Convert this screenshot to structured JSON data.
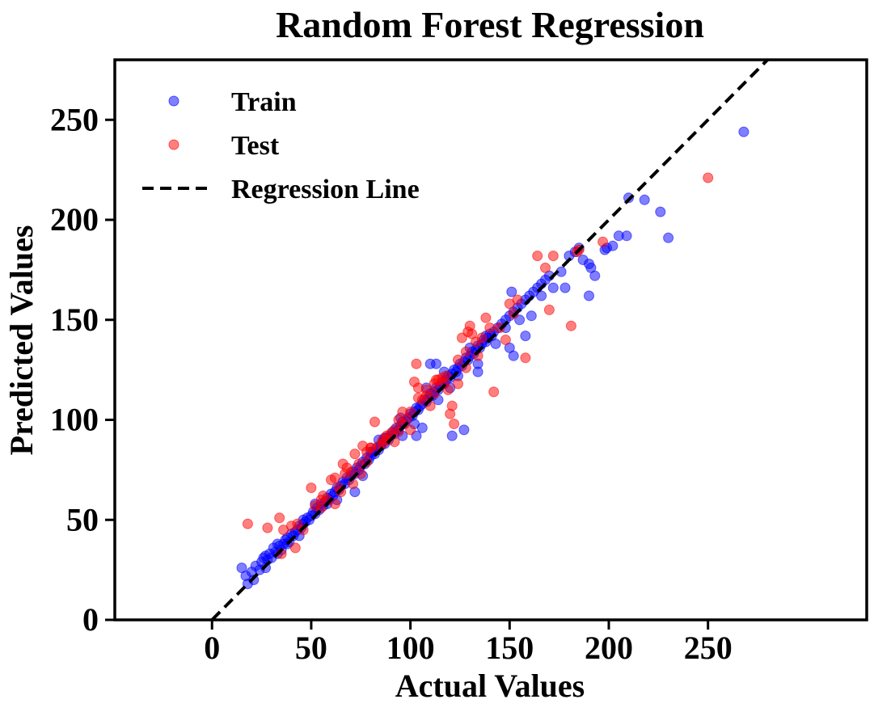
{
  "chart_data": {
    "type": "scatter",
    "title": "Random Forest Regression",
    "xlabel": "Actual Values",
    "ylabel": "Predicted Values",
    "xlim": [
      -49,
      330
    ],
    "ylim": [
      0,
      280
    ],
    "xticks": [
      0,
      50,
      100,
      150,
      200,
      250
    ],
    "yticks": [
      0,
      50,
      100,
      150,
      200,
      250
    ],
    "grid": false,
    "legend_position": "top-left",
    "series": [
      {
        "name": "Train",
        "color": "#0000ff",
        "marker": "circle",
        "points": [
          [
            15,
            26
          ],
          [
            17,
            22
          ],
          [
            18,
            18
          ],
          [
            20,
            24
          ],
          [
            21,
            20
          ],
          [
            22,
            27
          ],
          [
            24,
            25
          ],
          [
            25,
            29
          ],
          [
            26,
            31
          ],
          [
            27,
            26
          ],
          [
            28,
            30
          ],
          [
            29,
            33
          ],
          [
            30,
            31
          ],
          [
            31,
            36
          ],
          [
            32,
            34
          ],
          [
            33,
            33
          ],
          [
            34,
            37
          ],
          [
            35,
            35
          ],
          [
            36,
            38
          ],
          [
            37,
            40
          ],
          [
            38,
            41
          ],
          [
            39,
            39
          ],
          [
            40,
            43
          ],
          [
            41,
            42
          ],
          [
            42,
            44
          ],
          [
            43,
            45
          ],
          [
            44,
            47
          ],
          [
            45,
            46
          ],
          [
            46,
            48
          ],
          [
            47,
            49
          ],
          [
            48,
            51
          ],
          [
            49,
            50
          ],
          [
            50,
            52
          ],
          [
            51,
            54
          ],
          [
            52,
            53
          ],
          [
            53,
            56
          ],
          [
            54,
            55
          ],
          [
            55,
            58
          ],
          [
            56,
            57
          ],
          [
            57,
            59
          ],
          [
            58,
            61
          ],
          [
            59,
            60
          ],
          [
            60,
            63
          ],
          [
            61,
            62
          ],
          [
            62,
            64
          ],
          [
            63,
            66
          ],
          [
            64,
            65
          ],
          [
            65,
            67
          ],
          [
            66,
            69
          ],
          [
            67,
            68
          ],
          [
            68,
            71
          ],
          [
            69,
            70
          ],
          [
            70,
            72
          ],
          [
            71,
            74
          ],
          [
            72,
            73
          ],
          [
            73,
            76
          ],
          [
            74,
            75
          ],
          [
            75,
            77
          ],
          [
            76,
            79
          ],
          [
            77,
            78
          ],
          [
            78,
            81
          ],
          [
            79,
            80
          ],
          [
            80,
            82
          ],
          [
            81,
            84
          ],
          [
            82,
            83
          ],
          [
            83,
            86
          ],
          [
            84,
            85
          ],
          [
            85,
            87
          ],
          [
            86,
            89
          ],
          [
            87,
            88
          ],
          [
            88,
            91
          ],
          [
            89,
            90
          ],
          [
            90,
            92
          ],
          [
            91,
            94
          ],
          [
            92,
            93
          ],
          [
            93,
            96
          ],
          [
            94,
            95
          ],
          [
            95,
            97
          ],
          [
            96,
            99
          ],
          [
            97,
            98
          ],
          [
            98,
            100
          ],
          [
            99,
            101
          ],
          [
            100,
            103
          ],
          [
            101,
            102
          ],
          [
            102,
            104
          ],
          [
            103,
            106
          ],
          [
            104,
            105
          ],
          [
            105,
            107
          ],
          [
            106,
            108
          ],
          [
            107,
            110
          ],
          [
            108,
            109
          ],
          [
            109,
            111
          ],
          [
            110,
            113
          ],
          [
            111,
            112
          ],
          [
            112,
            114
          ],
          [
            113,
            116
          ],
          [
            114,
            115
          ],
          [
            115,
            117
          ],
          [
            116,
            119
          ],
          [
            117,
            118
          ],
          [
            118,
            120
          ],
          [
            119,
            122
          ],
          [
            120,
            121
          ],
          [
            121,
            123
          ],
          [
            122,
            125
          ],
          [
            123,
            124
          ],
          [
            124,
            126
          ],
          [
            125,
            128
          ],
          [
            126,
            127
          ],
          [
            127,
            129
          ],
          [
            128,
            131
          ],
          [
            129,
            130
          ],
          [
            130,
            132
          ],
          [
            131,
            134
          ],
          [
            132,
            133
          ],
          [
            133,
            135
          ],
          [
            134,
            137
          ],
          [
            135,
            136
          ],
          [
            136,
            138
          ],
          [
            137,
            140
          ],
          [
            138,
            139
          ],
          [
            139,
            141
          ],
          [
            140,
            143
          ],
          [
            141,
            142
          ],
          [
            142,
            144
          ],
          [
            144,
            146
          ],
          [
            146,
            148
          ],
          [
            148,
            150
          ],
          [
            150,
            152
          ],
          [
            152,
            154
          ],
          [
            154,
            156
          ],
          [
            156,
            158
          ],
          [
            158,
            160
          ],
          [
            160,
            162
          ],
          [
            162,
            164
          ],
          [
            164,
            166
          ],
          [
            166,
            168
          ],
          [
            168,
            170
          ],
          [
            170,
            172
          ],
          [
            33,
            38
          ],
          [
            44,
            42
          ],
          [
            52,
            58
          ],
          [
            63,
            60
          ],
          [
            76,
            72
          ],
          [
            84,
            90
          ],
          [
            96,
            92
          ],
          [
            102,
            98
          ],
          [
            108,
            116
          ],
          [
            114,
            110
          ],
          [
            120,
            116
          ],
          [
            124,
            122
          ],
          [
            130,
            136
          ],
          [
            134,
            128
          ],
          [
            138,
            142
          ],
          [
            143,
            138
          ],
          [
            148,
            146
          ],
          [
            151,
            164
          ],
          [
            155,
            150
          ],
          [
            150,
            136
          ],
          [
            152,
            132
          ],
          [
            158,
            142
          ],
          [
            161,
            152
          ],
          [
            166,
            162
          ],
          [
            172,
            166
          ],
          [
            176,
            174
          ],
          [
            180,
            182
          ],
          [
            183,
            184
          ],
          [
            185,
            186
          ],
          [
            187,
            180
          ],
          [
            190,
            178
          ],
          [
            191,
            176
          ],
          [
            193,
            172
          ],
          [
            198,
            185
          ],
          [
            199,
            186
          ],
          [
            202,
            187
          ],
          [
            205,
            192
          ],
          [
            209,
            192
          ],
          [
            210,
            211
          ],
          [
            218,
            210
          ],
          [
            226,
            204
          ],
          [
            230,
            191
          ],
          [
            190,
            162
          ],
          [
            178,
            166
          ],
          [
            268,
            244
          ],
          [
            113,
            128
          ],
          [
            110,
            128
          ],
          [
            117,
            124
          ],
          [
            121,
            92
          ],
          [
            127,
            95
          ],
          [
            134,
            124
          ],
          [
            106,
            96
          ],
          [
            103,
            92
          ],
          [
            95,
            101
          ],
          [
            87,
            91
          ],
          [
            80,
            84
          ],
          [
            72,
            64
          ],
          [
            58,
            58
          ],
          [
            46,
            50
          ],
          [
            38,
            38
          ],
          [
            27,
            32
          ]
        ]
      },
      {
        "name": "Test",
        "color": "#ff0000",
        "marker": "circle",
        "points": [
          [
            18,
            48
          ],
          [
            28,
            46
          ],
          [
            34,
            51
          ],
          [
            36,
            45
          ],
          [
            40,
            47
          ],
          [
            43,
            48
          ],
          [
            46,
            45
          ],
          [
            50,
            66
          ],
          [
            52,
            57
          ],
          [
            55,
            56
          ],
          [
            58,
            60
          ],
          [
            60,
            70
          ],
          [
            62,
            71
          ],
          [
            64,
            66
          ],
          [
            65,
            64
          ],
          [
            67,
            73
          ],
          [
            68,
            76
          ],
          [
            70,
            74
          ],
          [
            71,
            68
          ],
          [
            72,
            83
          ],
          [
            74,
            78
          ],
          [
            75,
            73
          ],
          [
            76,
            87
          ],
          [
            78,
            84
          ],
          [
            80,
            86
          ],
          [
            82,
            99
          ],
          [
            84,
            87
          ],
          [
            86,
            88
          ],
          [
            88,
            92
          ],
          [
            90,
            93
          ],
          [
            92,
            95
          ],
          [
            94,
            94
          ],
          [
            96,
            98
          ],
          [
            98,
            100
          ],
          [
            100,
            104
          ],
          [
            102,
            119
          ],
          [
            103,
            128
          ],
          [
            104,
            111
          ],
          [
            106,
            110
          ],
          [
            108,
            115
          ],
          [
            110,
            107
          ],
          [
            112,
            113
          ],
          [
            114,
            120
          ],
          [
            116,
            121
          ],
          [
            117,
            118
          ],
          [
            118,
            122
          ],
          [
            119,
            115
          ],
          [
            120,
            103
          ],
          [
            121,
            107
          ],
          [
            122,
            98
          ],
          [
            124,
            130
          ],
          [
            126,
            141
          ],
          [
            128,
            134
          ],
          [
            129,
            144
          ],
          [
            130,
            147
          ],
          [
            131,
            143
          ],
          [
            133,
            139
          ],
          [
            136,
            141
          ],
          [
            138,
            151
          ],
          [
            140,
            146
          ],
          [
            142,
            114
          ],
          [
            148,
            140
          ],
          [
            150,
            158
          ],
          [
            152,
            153
          ],
          [
            154,
            160
          ],
          [
            158,
            131
          ],
          [
            164,
            182
          ],
          [
            168,
            176
          ],
          [
            170,
            155
          ],
          [
            172,
            182
          ],
          [
            181,
            147
          ],
          [
            184,
            184
          ],
          [
            185,
            185
          ],
          [
            197,
            189
          ],
          [
            250,
            221
          ],
          [
            35,
            33
          ],
          [
            42,
            36
          ],
          [
            56,
            62
          ],
          [
            66,
            78
          ],
          [
            78,
            79
          ],
          [
            88,
            90
          ],
          [
            92,
            89
          ],
          [
            96,
            104
          ],
          [
            108,
            112
          ],
          [
            113,
            120
          ],
          [
            128,
            126
          ],
          [
            134,
            132
          ],
          [
            145,
            146
          ],
          [
            80,
            86
          ],
          [
            62,
            58
          ],
          [
            55,
            60
          ],
          [
            104,
            116
          ],
          [
            112,
            118
          ],
          [
            124,
            118
          ],
          [
            100,
            95
          ],
          [
            94,
            100
          ],
          [
            86,
            90
          ]
        ]
      }
    ],
    "reference_line": {
      "name": "Regression Line",
      "color": "#000000",
      "style": "dashed",
      "x": [
        0,
        285
      ],
      "y": [
        0,
        285
      ]
    }
  }
}
